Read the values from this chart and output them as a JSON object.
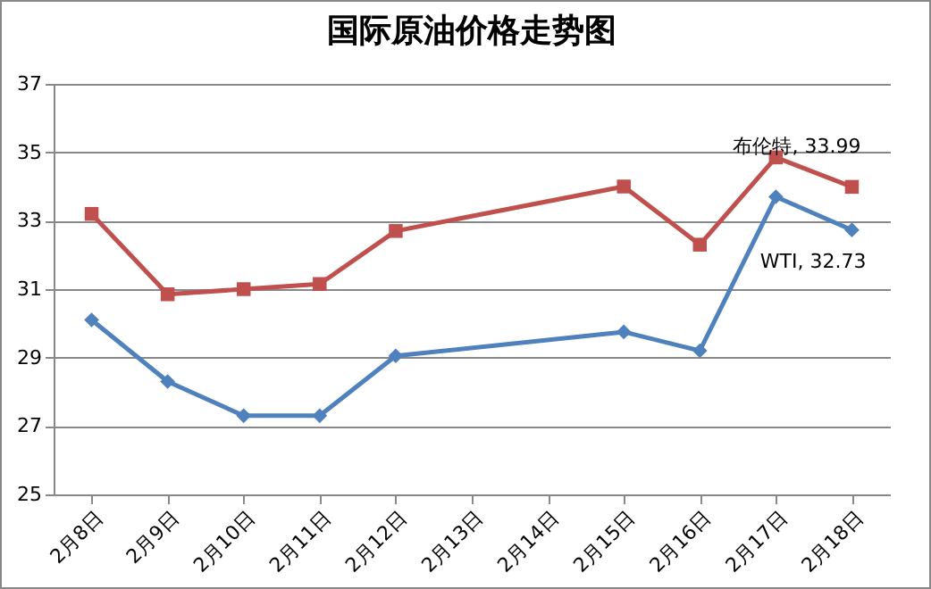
{
  "chart_data": {
    "type": "line",
    "title": "国际原油价格走势图",
    "categories": [
      "2月8日",
      "2月9日",
      "2月10日",
      "2月11日",
      "2月12日",
      "2月13日",
      "2月14日",
      "2月15日",
      "2月16日",
      "2月17日",
      "2月18日"
    ],
    "series": [
      {
        "color": "#c0504d",
        "marker": "square",
        "values": [
          33.2,
          30.85,
          31.0,
          31.15,
          32.7,
          null,
          null,
          34.0,
          32.3,
          34.85,
          33.99
        ]
      },
      {
        "color": "#4f81bd",
        "marker": "diamond",
        "values": [
          30.1,
          28.3,
          27.3,
          27.3,
          29.05,
          null,
          null,
          29.75,
          29.2,
          33.7,
          32.73
        ]
      }
    ],
    "annotations": [
      {
        "text": "布伦特, 33.99",
        "x": "2月18日",
        "y": 33.99
      },
      {
        "text": "WTI, 32.73",
        "x": "2月18日",
        "y": 32.73
      }
    ],
    "ylim": [
      25,
      37
    ],
    "yticks": [
      25,
      27,
      29,
      31,
      33,
      35,
      37
    ],
    "grid": "y",
    "line_style": "solid"
  }
}
